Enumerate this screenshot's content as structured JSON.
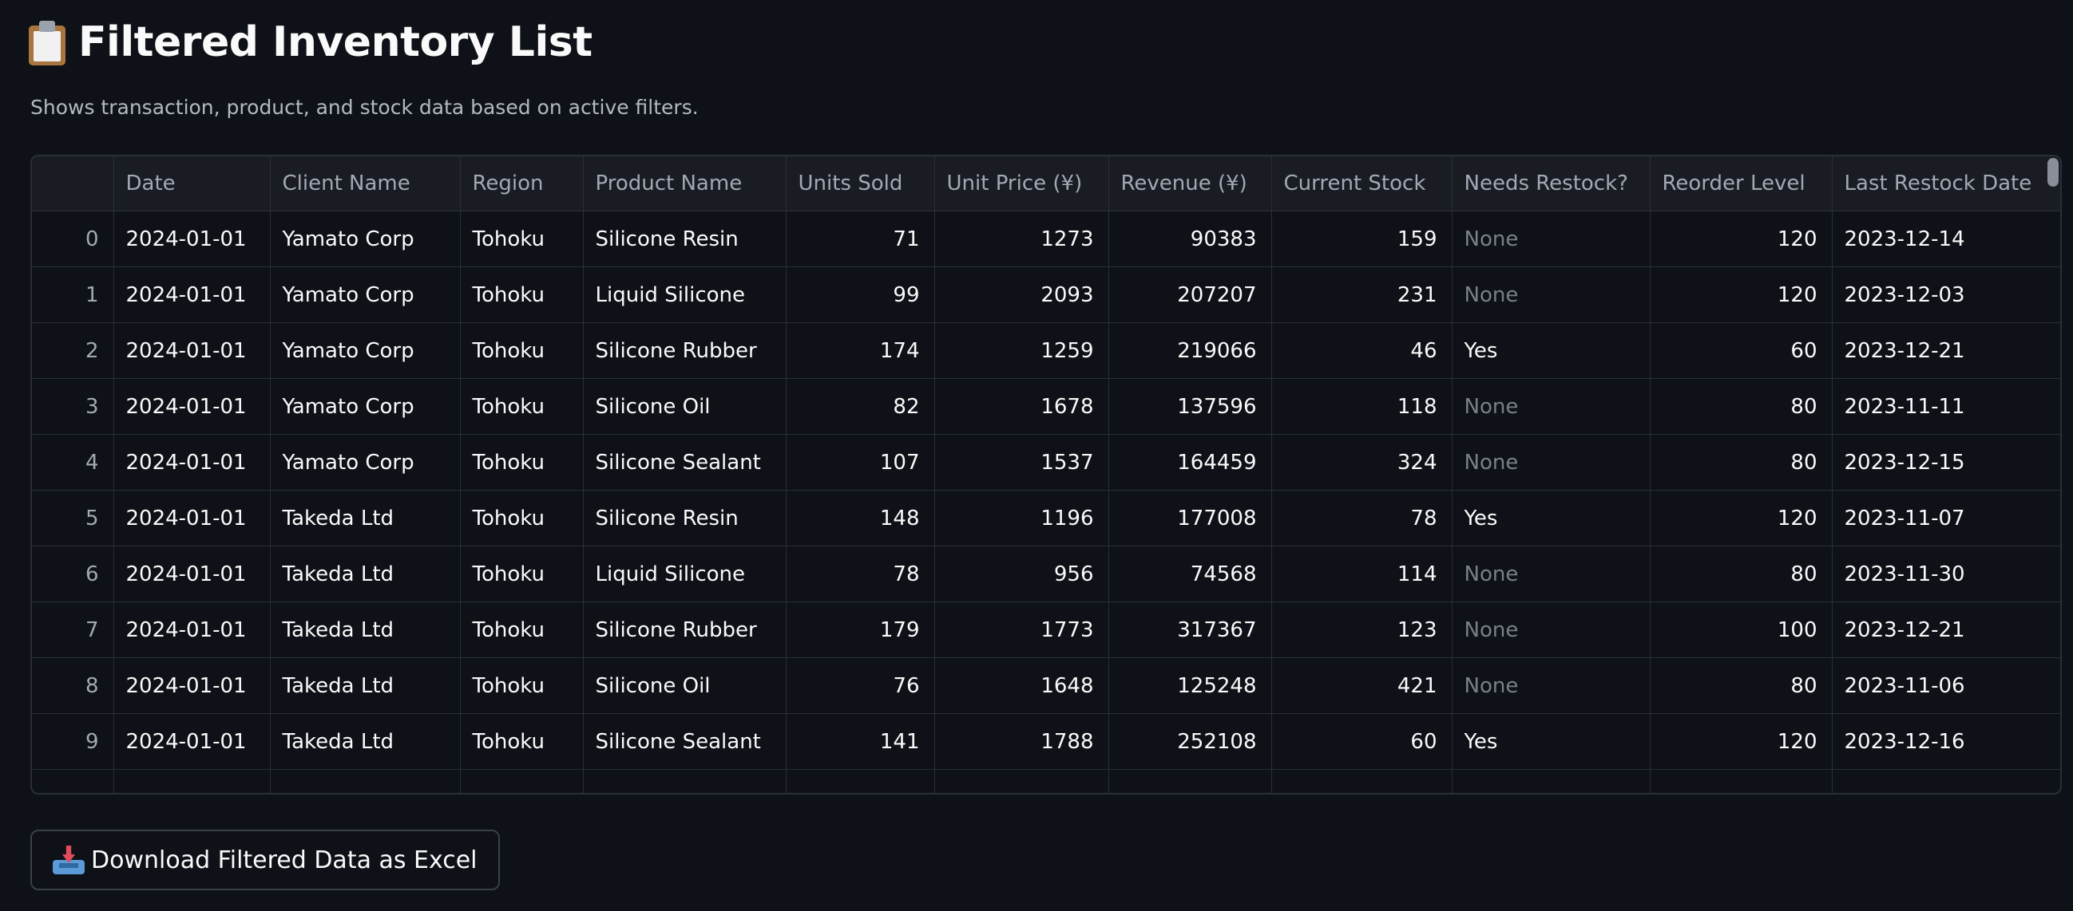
{
  "header": {
    "title": "Filtered Inventory List",
    "subtitle": "Shows transaction, product, and stock data based on active filters."
  },
  "table": {
    "columns": [
      "",
      "Date",
      "Client Name",
      "Region",
      "Product Name",
      "Units Sold",
      "Unit Price (¥)",
      "Revenue (¥)",
      "Current Stock",
      "Needs Restock?",
      "Reorder Level",
      "Last Restock Date"
    ],
    "rows": [
      [
        "0",
        "2024-01-01",
        "Yamato Corp",
        "Tohoku",
        "Silicone Resin",
        "71",
        "1273",
        "90383",
        "159",
        "None",
        "120",
        "2023-12-14"
      ],
      [
        "1",
        "2024-01-01",
        "Yamato Corp",
        "Tohoku",
        "Liquid Silicone",
        "99",
        "2093",
        "207207",
        "231",
        "None",
        "120",
        "2023-12-03"
      ],
      [
        "2",
        "2024-01-01",
        "Yamato Corp",
        "Tohoku",
        "Silicone Rubber",
        "174",
        "1259",
        "219066",
        "46",
        "Yes",
        "60",
        "2023-12-21"
      ],
      [
        "3",
        "2024-01-01",
        "Yamato Corp",
        "Tohoku",
        "Silicone Oil",
        "82",
        "1678",
        "137596",
        "118",
        "None",
        "80",
        "2023-11-11"
      ],
      [
        "4",
        "2024-01-01",
        "Yamato Corp",
        "Tohoku",
        "Silicone Sealant",
        "107",
        "1537",
        "164459",
        "324",
        "None",
        "80",
        "2023-12-15"
      ],
      [
        "5",
        "2024-01-01",
        "Takeda Ltd",
        "Tohoku",
        "Silicone Resin",
        "148",
        "1196",
        "177008",
        "78",
        "Yes",
        "120",
        "2023-11-07"
      ],
      [
        "6",
        "2024-01-01",
        "Takeda Ltd",
        "Tohoku",
        "Liquid Silicone",
        "78",
        "956",
        "74568",
        "114",
        "None",
        "80",
        "2023-11-30"
      ],
      [
        "7",
        "2024-01-01",
        "Takeda Ltd",
        "Tohoku",
        "Silicone Rubber",
        "179",
        "1773",
        "317367",
        "123",
        "None",
        "100",
        "2023-12-21"
      ],
      [
        "8",
        "2024-01-01",
        "Takeda Ltd",
        "Tohoku",
        "Silicone Oil",
        "76",
        "1648",
        "125248",
        "421",
        "None",
        "80",
        "2023-11-06"
      ],
      [
        "9",
        "2024-01-01",
        "Takeda Ltd",
        "Tohoku",
        "Silicone Sealant",
        "141",
        "1788",
        "252108",
        "60",
        "Yes",
        "120",
        "2023-12-16"
      ]
    ]
  },
  "download_button": {
    "label": "Download Filtered Data as Excel"
  },
  "icons": {
    "title_icon": "clipboard-icon",
    "button_icon": "inbox-tray-icon"
  },
  "colors": {
    "background": "#0e1117",
    "text": "#fafafa",
    "muted": "#7b7f8a"
  }
}
